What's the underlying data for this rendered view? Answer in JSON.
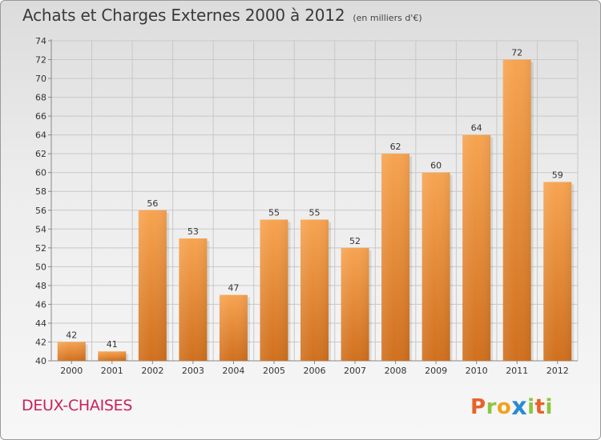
{
  "header": {
    "title": "Achats et Charges Externes 2000 à 2012",
    "unit": "(en milliers d'€)"
  },
  "footer": {
    "commune": "DEUX-CHAISES",
    "logo": [
      "P",
      "r",
      "o",
      "x",
      "i",
      "t",
      "i"
    ],
    "logo_colors": [
      "#e8622a",
      "#8cc63e",
      "#f0a21c",
      "#2a8ad4",
      "#8cc63e",
      "#e8622a",
      "#8cc63e"
    ]
  },
  "colors": {
    "bar_top": "#f7a451",
    "bar_bottom": "#d0701e",
    "grid": "#c8c8c8",
    "title": "#3a3a3a",
    "commune": "#c8215a"
  },
  "chart_data": {
    "type": "bar",
    "title": "Achats et Charges Externes 2000 à 2012",
    "subtitle": "(en milliers d'€)",
    "xlabel": "",
    "ylabel": "",
    "categories": [
      "2000",
      "2001",
      "2002",
      "2003",
      "2004",
      "2005",
      "2006",
      "2007",
      "2008",
      "2009",
      "2010",
      "2011",
      "2012"
    ],
    "values": [
      42,
      41,
      56,
      53,
      47,
      55,
      55,
      52,
      62,
      60,
      64,
      72,
      59
    ],
    "ylim": [
      40,
      74
    ],
    "ytick_step": 2,
    "grid": true,
    "legend": "none"
  }
}
